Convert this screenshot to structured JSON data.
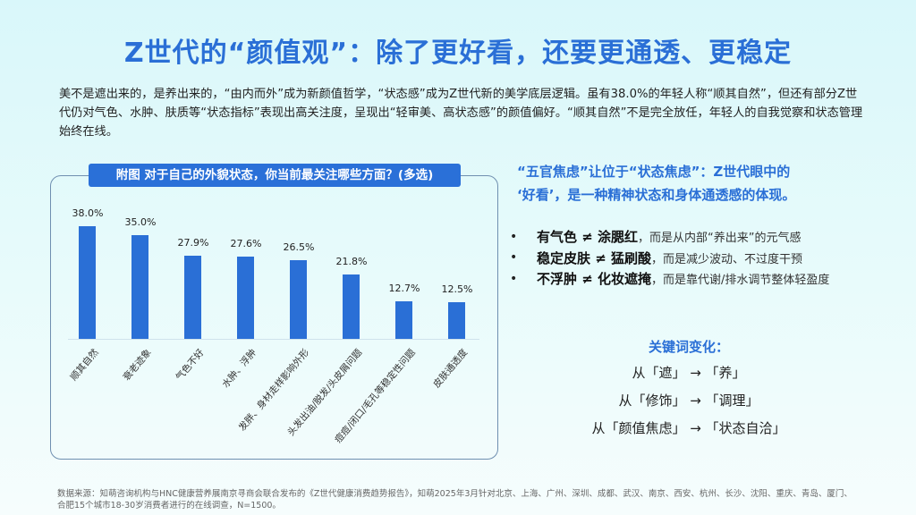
{
  "title": "Z世代的“颜值观”：除了更好看，还要更通透、更稳定",
  "intro": "美不是遮出来的，是养出来的，“由内而外”成为新颜值哲学，“状态感”成为Z世代新的美学底层逻辑。虽有38.0%的年轻人称“顺其自然”，但还有部分Z世代仍对气色、水肿、肤质等“状态指标”表现出高关注度，呈现出“轻审美、高状态感”的颜值偏好。“顺其自然”不是完全放任，年轻人的自我觉察和状态管理始终在线。",
  "chart_title": "附图 对于自己的外貌状态，你当前最关注哪些方面？(多选)",
  "chart_data": {
    "type": "bar",
    "title": "附图 对于自己的外貌状态，你当前最关注哪些方面？(多选)",
    "categories": [
      "顺其自然",
      "衰老迹象",
      "气色不好",
      "水肿、浮肿",
      "发胖、身材走样影响外形",
      "头发出油/脱发/头皮屑问题",
      "痘痘/闭口/毛孔等稳定性问题",
      "皮肤通透度"
    ],
    "values": [
      38.0,
      35.0,
      27.9,
      27.6,
      26.5,
      21.8,
      12.7,
      12.5
    ],
    "labels": [
      "38.0%",
      "35.0%",
      "27.9%",
      "27.6%",
      "26.5%",
      "21.8%",
      "12.7%",
      "12.5%"
    ],
    "xlabel": "",
    "ylabel": "",
    "ylim": [
      0,
      40
    ],
    "grid": false,
    "legend": null,
    "color": "#2a6fd6"
  },
  "right": {
    "heading_line1": "“五官焦虑”让位于“状态焦虑”：Z世代眼中的",
    "heading_line2": "‘好看’，是一种精神状态和身体通透感的体现。",
    "bullets": [
      {
        "strong": "有气色 ≠ 涂腮红",
        "rest": "，而是从内部“养出来”的元气感"
      },
      {
        "strong": "稳定皮肤 ≠ 猛刷酸",
        "rest": "，而是减少波动、不过度干预"
      },
      {
        "strong": "不浮肿 ≠ 化妆遮掩",
        "rest": "，而是靠代谢/排水调节整体轻盈度"
      }
    ],
    "keywords_title": "关键词变化：",
    "keywords": [
      "从「遮」 → 「养」",
      "从「修饰」 → 「调理」",
      "从「颜值焦虑」 → 「状态自洽」"
    ]
  },
  "source_line1": "数据来源：知萌咨询机构与HNC健康营养展南京寻商会联合发布的《Z世代健康消费趋势报告》，知萌2025年3月针对北京、上海、广州、深圳、成都、武汉、南京、西安、杭州、长沙、沈阳、重庆、青岛、厦门、",
  "source_line2": "合肥15个城市18-30岁消费者进行的在线调查，N=1500。"
}
